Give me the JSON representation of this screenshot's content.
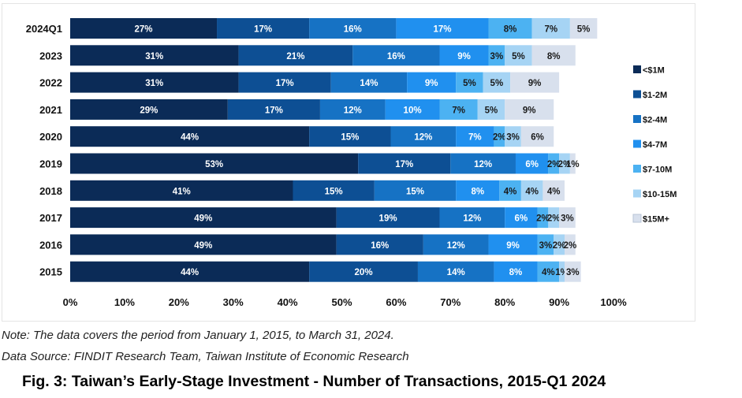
{
  "chart_data": {
    "type": "bar",
    "orientation": "horizontal",
    "stacked": "percent",
    "categories": [
      "2024Q1",
      "2023",
      "2022",
      "2021",
      "2020",
      "2019",
      "2018",
      "2017",
      "2016",
      "2015"
    ],
    "series": [
      {
        "name": "<$1M",
        "color": "#0b2b57",
        "values": [
          27,
          31,
          31,
          29,
          44,
          53,
          41,
          49,
          49,
          44
        ]
      },
      {
        "name": "$1-2M",
        "color": "#0d4f94",
        "values": [
          17,
          21,
          17,
          17,
          15,
          17,
          15,
          19,
          16,
          20
        ]
      },
      {
        "name": "$2-4M",
        "color": "#1672c4",
        "values": [
          16,
          16,
          14,
          12,
          12,
          12,
          15,
          12,
          12,
          14
        ]
      },
      {
        "name": "$4-7M",
        "color": "#2090ef",
        "values": [
          17,
          9,
          9,
          10,
          7,
          6,
          8,
          6,
          9,
          8
        ]
      },
      {
        "name": "$7-10M",
        "color": "#4cb2f2",
        "values": [
          8,
          3,
          5,
          7,
          2,
          2,
          4,
          2,
          3,
          4
        ]
      },
      {
        "name": "$10-15M",
        "color": "#a6d4f4",
        "values": [
          7,
          5,
          5,
          5,
          3,
          2,
          4,
          2,
          2,
          1
        ]
      },
      {
        "name": "$15M+",
        "color": "#d8e0ed",
        "values": [
          5,
          8,
          9,
          9,
          6,
          1,
          4,
          3,
          2,
          3
        ]
      }
    ],
    "data_labels": [
      [
        "27%",
        "17%",
        "16%",
        "17%",
        "8%",
        "7%",
        "5%"
      ],
      [
        "31%",
        "21%",
        "16%",
        "9%",
        "3%",
        "5%",
        "8%"
      ],
      [
        "31%",
        "17%",
        "14%",
        "9%",
        "5%",
        "5%",
        "9%"
      ],
      [
        "29%",
        "17%",
        "12%",
        "10%",
        "7%",
        "5%",
        "9%"
      ],
      [
        "44%",
        "15%",
        "12%",
        "7%",
        "2%",
        "3%",
        "6%"
      ],
      [
        "53%",
        "17%",
        "12%",
        "6%",
        "2%",
        "2%",
        "1%"
      ],
      [
        "41%",
        "15%",
        "15%",
        "8%",
        "4%",
        "4%",
        "4%"
      ],
      [
        "49%",
        "19%",
        "12%",
        "6%",
        "2%",
        "2%",
        "3%"
      ],
      [
        "49%",
        "16%",
        "12%",
        "9%",
        "3%",
        "2%",
        "2%"
      ],
      [
        "44%",
        "20%",
        "14%",
        "8%",
        "4%",
        "1%",
        "3%"
      ]
    ],
    "xlim": [
      0,
      100
    ],
    "xticks": [
      "0%",
      "10%",
      "20%",
      "30%",
      "40%",
      "50%",
      "60%",
      "70%",
      "80%",
      "90%",
      "100%"
    ],
    "legend_position": "right",
    "grid": false
  },
  "notes": {
    "line1": "Note: The data covers the period from January 1, 2015, to March 31, 2024.",
    "line2": "Data Source: FINDIT Research Team, Taiwan Institute of Economic Research"
  },
  "caption": "Fig. 3: Taiwan’s Early-Stage Investment - Number of Transactions, 2015-Q1 2024"
}
